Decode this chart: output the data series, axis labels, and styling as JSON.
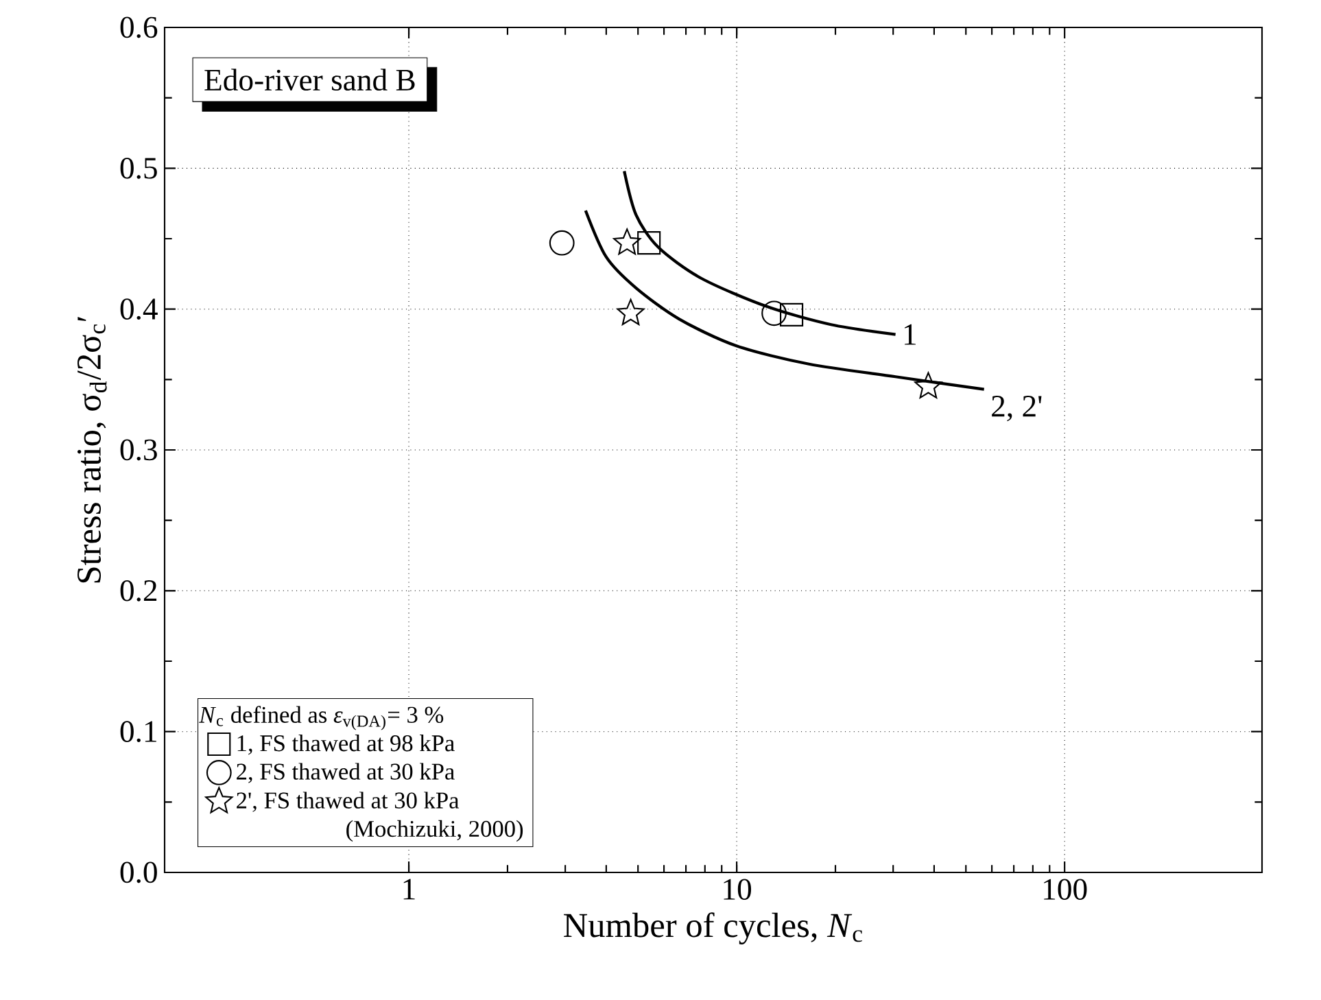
{
  "chart_data": {
    "type": "scatter",
    "xlabel": "Number of cycles, *N*$_{c}$",
    "ylabel": "Stress ratio, σ$_{d}$/2σ$_{c}$′",
    "legend_title": "*N*$_{c}$ defined as *ε*$_{v(DA)}$= 3 %",
    "log": "x",
    "grid": true,
    "legend": "bottom left",
    "xlim": [
      0.18,
      400
    ],
    "xticks": [
      1,
      10,
      100
    ],
    "ylim": [
      0,
      0.6
    ],
    "yticks": [
      {
        "value": 0,
        "label": "0.0"
      },
      0.1,
      0.2,
      0.3,
      0.4,
      0.5,
      0.6
    ],
    "series": [
      {
        "name": "1, FS thawed at 98 kPa",
        "color": "#000000",
        "marker": "square",
        "x": [
          5.4,
          14.7
        ],
        "values": [
          0.447,
          0.396
        ]
      },
      {
        "name": "2, FS thawed at 30 kPa",
        "color": "#000000",
        "marker": "circle",
        "x": [
          2.93,
          13.0
        ],
        "values": [
          0.447,
          0.397
        ]
      },
      {
        "name": "2', FS thawed at 30 kPa",
        "color": "#000000",
        "marker": "star",
        "x": [
          4.63,
          4.75,
          38.4
        ],
        "values": [
          0.447,
          0.397,
          0.345
        ]
      },
      {
        "type": "line",
        "color": "#000000",
        "marker": "none",
        "x": [
          4.54,
          4.93,
          5.76,
          7.78,
          12.3,
          19.4,
          30.5
        ],
        "values": [
          0.498,
          0.467,
          0.444,
          0.422,
          0.402,
          0.389,
          0.382
        ]
      },
      {
        "type": "line",
        "color": "#000000",
        "marker": "none",
        "x": [
          3.46,
          4.0,
          4.93,
          6.67,
          9.95,
          16.6,
          30.5,
          56.8
        ],
        "values": [
          0.47,
          0.437,
          0.415,
          0.393,
          0.374,
          0.361,
          0.352,
          0.343
        ]
      }
    ],
    "annotations": [
      "Edo-river sand B",
      "1",
      "2, 2'",
      "(Mochizuki, 2000)"
    ]
  }
}
